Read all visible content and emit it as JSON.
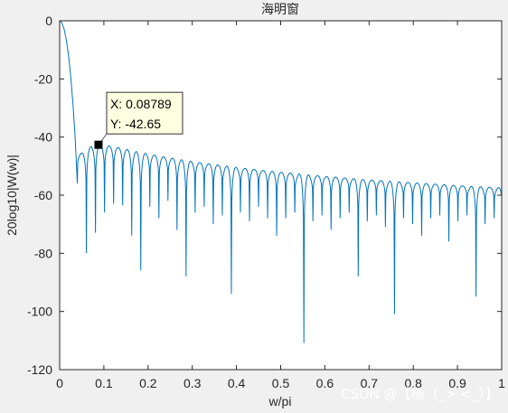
{
  "chart_data": {
    "type": "line",
    "title": "海明窗",
    "xlabel": "w/pi",
    "ylabel": "20log10|W(w)|",
    "xlim": [
      0,
      1
    ],
    "ylim": [
      -120,
      0
    ],
    "xticks": [
      0,
      0.1,
      0.2,
      0.3,
      0.4,
      0.5,
      0.6,
      0.7,
      0.8,
      0.9,
      1
    ],
    "xtick_labels": [
      "0",
      "0.1",
      "0.2",
      "0.3",
      "0.4",
      "0.5",
      "0.6",
      "0.7",
      "0.8",
      "0.9",
      "1"
    ],
    "yticks": [
      0,
      -20,
      -40,
      -60,
      -80,
      -100,
      -120
    ],
    "ytick_labels": [
      "0",
      "-20",
      "-40",
      "-60",
      "-80",
      "-100",
      "-120"
    ],
    "grid": false,
    "series_color": "#0072bd",
    "series": [
      {
        "description": "Hamming window magnitude response in dB; main lobe from 0 dB falling to first null near w/pi=0.04, then periodic sidelobes decaying from about -43 dB to about -57 dB, with nulls mostly between -60 and -110 dB",
        "main_lobe": {
          "x": [
            0,
            0.005,
            0.01,
            0.015,
            0.02,
            0.025,
            0.03,
            0.035,
            0.04
          ],
          "y": [
            0,
            -0.7,
            -2.8,
            -6.5,
            -11.8,
            -19,
            -28.5,
            -40,
            -56
          ]
        },
        "sidelobe_start_x": 0.04,
        "sidelobe_spacing_x": 0.0205,
        "sidelobe_peaks_db": [
          -45.5,
          -43.3,
          -42.65,
          -43,
          -43.6,
          -44.3,
          -45,
          -45.6,
          -46.2,
          -46.8,
          -47.3,
          -47.8,
          -48.3,
          -48.8,
          -49.2,
          -49.6,
          -50,
          -50.4,
          -50.8,
          -51.1,
          -51.5,
          -51.8,
          -52.1,
          -52.4,
          -52.7,
          -53,
          -53.3,
          -53.6,
          -53.8,
          -54.1,
          -54.3,
          -54.6,
          -54.8,
          -55,
          -55.2,
          -55.4,
          -55.6,
          -55.8,
          -56,
          -56.2,
          -56.4,
          -56.6,
          -56.8,
          -57,
          -57.1,
          -57.3,
          -57.4
        ],
        "null_depths_db": [
          -56,
          -80,
          -73,
          -66,
          -63,
          -63.5,
          -74,
          -86,
          -64,
          -68,
          -62,
          -72,
          -88,
          -66,
          -64,
          -70,
          -67,
          -94,
          -66,
          -69,
          -64,
          -68,
          -74,
          -68,
          -66,
          -111,
          -69,
          -67,
          -72,
          -68,
          -66,
          -88,
          -69,
          -67,
          -71,
          -101,
          -68,
          -70,
          -74,
          -68,
          -67,
          -76,
          -69,
          -67,
          -95,
          -70,
          -68,
          -90
        ]
      }
    ],
    "datatip": {
      "x": 0.08789,
      "y": -42.65,
      "x_label": "X: 0.08789",
      "y_label": "Y: -42.65"
    }
  },
  "watermark": "CSDN @【杨（_> <_）】"
}
